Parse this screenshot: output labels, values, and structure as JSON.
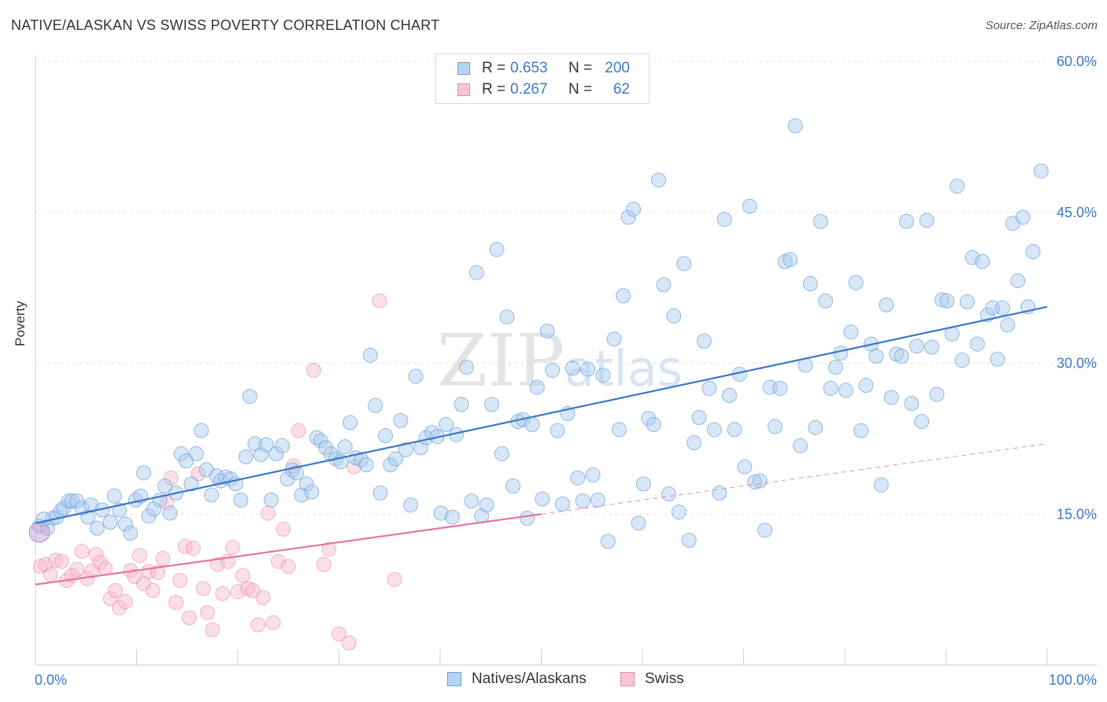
{
  "title": "NATIVE/ALASKAN VS SWISS POVERTY CORRELATION CHART",
  "source": "Source: ZipAtlas.com",
  "watermark": "ZIPatlas",
  "legend": {
    "rows": [
      {
        "r_label": "R =",
        "r_value": "0.653",
        "n_label": "N =",
        "n_value": "200",
        "fill": "#b8d3f2",
        "stroke": "#6a9fd8"
      },
      {
        "r_label": "R =",
        "r_value": "0.267",
        "n_label": "N =",
        "n_value": "62",
        "fill": "#f8c6d5",
        "stroke": "#e58aa6"
      }
    ]
  },
  "bottom_legend": [
    {
      "label": "Natives/Alaskans",
      "fill": "#b8d3f2",
      "stroke": "#6a9fd8"
    },
    {
      "label": "Swiss",
      "fill": "#f8c6d5",
      "stroke": "#e58aa6"
    }
  ],
  "colors": {
    "blue": "#3b78c8",
    "blue_fill": "#a9c9ee",
    "pink": "#e8739a",
    "pink_fill": "#f6b9cc",
    "grid": "#e3e3e3",
    "axis_text": "#3b78c8"
  },
  "chart_data": {
    "type": "scatter",
    "title": "NATIVE/ALASKAN VS SWISS POVERTY CORRELATION CHART",
    "xlabel": "",
    "ylabel": "Poverty",
    "xlim": [
      0,
      100
    ],
    "ylim": [
      0,
      60
    ],
    "x_tick_labels": [
      "0.0%",
      "100.0%"
    ],
    "y_ticks": [
      15,
      30,
      45,
      60
    ],
    "y_tick_labels": [
      "15.0%",
      "30.0%",
      "45.0%",
      "60.0%"
    ],
    "grid": true,
    "legend_position": "top-center",
    "series": [
      {
        "name": "Natives/Alaskans",
        "R": 0.653,
        "N": 200,
        "trend": {
          "x": [
            0,
            100
          ],
          "y": [
            14.1,
            35.6
          ]
        },
        "points": [
          [
            0.4,
            13.8
          ],
          [
            0.8,
            14.5
          ],
          [
            1.2,
            13.6
          ],
          [
            1.7,
            14.6
          ],
          [
            2.1,
            14.7
          ],
          [
            2.5,
            15.3
          ],
          [
            2.8,
            15.6
          ],
          [
            3.3,
            16.3
          ],
          [
            3.6,
            16.3
          ],
          [
            4.1,
            16.3
          ],
          [
            4.6,
            15.6
          ],
          [
            5.2,
            14.7
          ],
          [
            5.5,
            15.9
          ],
          [
            6.1,
            13.6
          ],
          [
            6.6,
            15.4
          ],
          [
            7.4,
            14.2
          ],
          [
            7.8,
            16.8
          ],
          [
            8.3,
            15.4
          ],
          [
            8.9,
            14.0
          ],
          [
            9.4,
            13.1
          ],
          [
            9.9,
            16.4
          ],
          [
            10.4,
            16.8
          ],
          [
            10.7,
            19.1
          ],
          [
            11.2,
            14.8
          ],
          [
            11.7,
            15.5
          ],
          [
            12.3,
            16.4
          ],
          [
            12.8,
            17.8
          ],
          [
            13.3,
            15.1
          ],
          [
            13.9,
            17.1
          ],
          [
            14.4,
            21.0
          ],
          [
            14.9,
            20.3
          ],
          [
            15.4,
            18.0
          ],
          [
            15.9,
            21.0
          ],
          [
            16.4,
            23.3
          ],
          [
            16.9,
            19.4
          ],
          [
            17.4,
            16.9
          ],
          [
            17.9,
            18.8
          ],
          [
            18.3,
            18.3
          ],
          [
            18.8,
            18.7
          ],
          [
            19.3,
            18.5
          ],
          [
            19.8,
            18.0
          ],
          [
            20.3,
            16.4
          ],
          [
            20.8,
            20.7
          ],
          [
            21.2,
            26.7
          ],
          [
            21.7,
            22.0
          ],
          [
            22.3,
            20.9
          ],
          [
            22.8,
            21.9
          ],
          [
            23.3,
            16.4
          ],
          [
            23.8,
            21.0
          ],
          [
            24.4,
            21.8
          ],
          [
            24.9,
            18.5
          ],
          [
            25.4,
            19.4
          ],
          [
            25.8,
            19.1
          ],
          [
            26.3,
            16.9
          ],
          [
            26.8,
            18.0
          ],
          [
            27.3,
            17.2
          ],
          [
            27.8,
            22.6
          ],
          [
            28.2,
            22.3
          ],
          [
            28.7,
            21.6
          ],
          [
            29.2,
            21.0
          ],
          [
            29.7,
            20.5
          ],
          [
            30.2,
            20.2
          ],
          [
            30.6,
            21.7
          ],
          [
            31.1,
            24.1
          ],
          [
            31.7,
            20.6
          ],
          [
            32.2,
            20.4
          ],
          [
            32.7,
            19.9
          ],
          [
            33.1,
            30.8
          ],
          [
            33.6,
            25.8
          ],
          [
            34.1,
            17.1
          ],
          [
            34.6,
            22.8
          ],
          [
            35.1,
            19.9
          ],
          [
            35.6,
            20.5
          ],
          [
            36.1,
            24.3
          ],
          [
            36.6,
            21.4
          ],
          [
            37.1,
            15.9
          ],
          [
            37.6,
            28.7
          ],
          [
            38.1,
            21.6
          ],
          [
            38.6,
            22.6
          ],
          [
            39.2,
            23.1
          ],
          [
            39.7,
            22.7
          ],
          [
            40.1,
            15.1
          ],
          [
            40.6,
            23.9
          ],
          [
            41.2,
            14.7
          ],
          [
            41.6,
            22.9
          ],
          [
            42.1,
            25.9
          ],
          [
            42.6,
            29.6
          ],
          [
            43.1,
            16.3
          ],
          [
            43.6,
            39.0
          ],
          [
            44.1,
            14.8
          ],
          [
            44.6,
            15.9
          ],
          [
            45.1,
            25.9
          ],
          [
            45.6,
            41.3
          ],
          [
            46.1,
            21.0
          ],
          [
            46.6,
            34.6
          ],
          [
            47.2,
            17.8
          ],
          [
            47.7,
            24.2
          ],
          [
            48.2,
            24.4
          ],
          [
            48.6,
            14.6
          ],
          [
            49.1,
            23.9
          ],
          [
            49.6,
            27.6
          ],
          [
            50.1,
            16.5
          ],
          [
            50.6,
            33.2
          ],
          [
            51.1,
            29.3
          ],
          [
            51.6,
            23.3
          ],
          [
            52.1,
            16.0
          ],
          [
            52.6,
            25.0
          ],
          [
            53.1,
            29.5
          ],
          [
            53.6,
            18.6
          ],
          [
            54.1,
            16.3
          ],
          [
            54.6,
            29.4
          ],
          [
            55.1,
            18.9
          ],
          [
            55.6,
            16.4
          ],
          [
            56.1,
            28.8
          ],
          [
            56.6,
            12.3
          ],
          [
            57.2,
            32.4
          ],
          [
            57.7,
            23.4
          ],
          [
            58.1,
            36.7
          ],
          [
            58.6,
            44.5
          ],
          [
            59.1,
            45.3
          ],
          [
            59.6,
            14.1
          ],
          [
            60.1,
            18.0
          ],
          [
            60.6,
            24.5
          ],
          [
            61.1,
            23.9
          ],
          [
            61.6,
            48.2
          ],
          [
            62.1,
            37.8
          ],
          [
            62.6,
            17.0
          ],
          [
            63.1,
            34.7
          ],
          [
            63.6,
            15.2
          ],
          [
            64.1,
            39.9
          ],
          [
            64.6,
            12.4
          ],
          [
            65.1,
            22.1
          ],
          [
            65.6,
            24.6
          ],
          [
            66.1,
            32.2
          ],
          [
            66.6,
            27.5
          ],
          [
            67.1,
            23.4
          ],
          [
            67.6,
            17.1
          ],
          [
            68.1,
            44.3
          ],
          [
            68.6,
            26.8
          ],
          [
            69.1,
            23.4
          ],
          [
            69.6,
            28.9
          ],
          [
            70.1,
            19.7
          ],
          [
            70.6,
            45.6
          ],
          [
            71.1,
            18.2
          ],
          [
            71.6,
            18.3
          ],
          [
            72.1,
            13.4
          ],
          [
            72.6,
            27.6
          ],
          [
            73.1,
            23.7
          ],
          [
            73.6,
            27.5
          ],
          [
            74.1,
            40.1
          ],
          [
            74.6,
            40.3
          ],
          [
            75.1,
            53.6
          ],
          [
            75.6,
            21.8
          ],
          [
            76.1,
            29.8
          ],
          [
            76.6,
            37.9
          ],
          [
            77.1,
            23.6
          ],
          [
            77.6,
            44.1
          ],
          [
            78.1,
            36.2
          ],
          [
            78.6,
            27.5
          ],
          [
            79.1,
            29.6
          ],
          [
            79.6,
            31.0
          ],
          [
            80.1,
            27.3
          ],
          [
            80.6,
            33.1
          ],
          [
            81.1,
            38.0
          ],
          [
            81.6,
            23.3
          ],
          [
            82.1,
            27.8
          ],
          [
            82.6,
            31.9
          ],
          [
            83.1,
            30.7
          ],
          [
            83.6,
            17.9
          ],
          [
            84.1,
            35.8
          ],
          [
            84.6,
            26.6
          ],
          [
            85.1,
            30.9
          ],
          [
            85.6,
            30.7
          ],
          [
            86.1,
            44.1
          ],
          [
            86.6,
            26.0
          ],
          [
            87.1,
            31.7
          ],
          [
            87.6,
            24.2
          ],
          [
            88.1,
            44.2
          ],
          [
            88.6,
            31.6
          ],
          [
            89.1,
            26.9
          ],
          [
            89.6,
            36.3
          ],
          [
            90.1,
            36.2
          ],
          [
            90.6,
            32.9
          ],
          [
            91.1,
            47.6
          ],
          [
            91.6,
            30.3
          ],
          [
            92.1,
            36.1
          ],
          [
            92.6,
            40.5
          ],
          [
            93.1,
            31.9
          ],
          [
            93.6,
            40.1
          ],
          [
            94.1,
            34.8
          ],
          [
            94.6,
            35.5
          ],
          [
            95.1,
            30.4
          ],
          [
            95.6,
            35.5
          ],
          [
            96.1,
            33.8
          ],
          [
            96.6,
            43.9
          ],
          [
            97.1,
            38.2
          ],
          [
            97.6,
            44.5
          ],
          [
            98.1,
            35.6
          ],
          [
            98.6,
            41.1
          ],
          [
            99.4,
            49.1
          ]
        ]
      },
      {
        "name": "Swiss",
        "R": 0.267,
        "N": 62,
        "trend": {
          "x": [
            0,
            50
          ],
          "y": [
            8.0,
            15.0
          ]
        },
        "trend_extension": {
          "x": [
            50,
            100
          ],
          "y": [
            15.0,
            22.0
          ]
        },
        "points": [
          [
            0.5,
            9.8
          ],
          [
            1.0,
            10.0
          ],
          [
            1.5,
            9.0
          ],
          [
            2.0,
            10.4
          ],
          [
            2.6,
            10.3
          ],
          [
            3.1,
            8.4
          ],
          [
            3.6,
            8.9
          ],
          [
            4.1,
            9.5
          ],
          [
            4.6,
            11.3
          ],
          [
            5.1,
            8.6
          ],
          [
            5.6,
            9.4
          ],
          [
            6.0,
            11.0
          ],
          [
            6.4,
            10.2
          ],
          [
            6.9,
            9.6
          ],
          [
            7.4,
            6.6
          ],
          [
            7.9,
            7.4
          ],
          [
            8.3,
            5.7
          ],
          [
            8.9,
            6.3
          ],
          [
            9.4,
            9.4
          ],
          [
            9.8,
            8.8
          ],
          [
            10.3,
            10.9
          ],
          [
            10.7,
            8.1
          ],
          [
            11.2,
            9.3
          ],
          [
            11.6,
            7.4
          ],
          [
            12.1,
            9.2
          ],
          [
            12.6,
            10.6
          ],
          [
            13.0,
            16.1
          ],
          [
            13.4,
            18.6
          ],
          [
            13.9,
            6.2
          ],
          [
            14.3,
            8.4
          ],
          [
            14.8,
            11.8
          ],
          [
            15.2,
            4.7
          ],
          [
            15.6,
            11.6
          ],
          [
            16.1,
            19.0
          ],
          [
            16.6,
            7.6
          ],
          [
            17.0,
            5.2
          ],
          [
            17.5,
            3.5
          ],
          [
            18.0,
            10.0
          ],
          [
            18.5,
            7.1
          ],
          [
            19.0,
            10.3
          ],
          [
            19.5,
            11.7
          ],
          [
            20.0,
            7.3
          ],
          [
            20.5,
            8.9
          ],
          [
            21.0,
            7.6
          ],
          [
            21.5,
            7.4
          ],
          [
            22.0,
            4.0
          ],
          [
            22.5,
            6.7
          ],
          [
            23.0,
            15.1
          ],
          [
            23.5,
            4.2
          ],
          [
            24.0,
            10.3
          ],
          [
            24.5,
            13.5
          ],
          [
            25.0,
            9.8
          ],
          [
            26.0,
            23.3
          ],
          [
            27.5,
            29.3
          ],
          [
            28.5,
            10.0
          ],
          [
            29.0,
            11.5
          ],
          [
            30.0,
            3.1
          ],
          [
            31.0,
            2.2
          ],
          [
            31.5,
            19.7
          ],
          [
            34.0,
            36.2
          ],
          [
            35.5,
            8.5
          ],
          [
            25.5,
            19.8
          ]
        ]
      }
    ]
  }
}
